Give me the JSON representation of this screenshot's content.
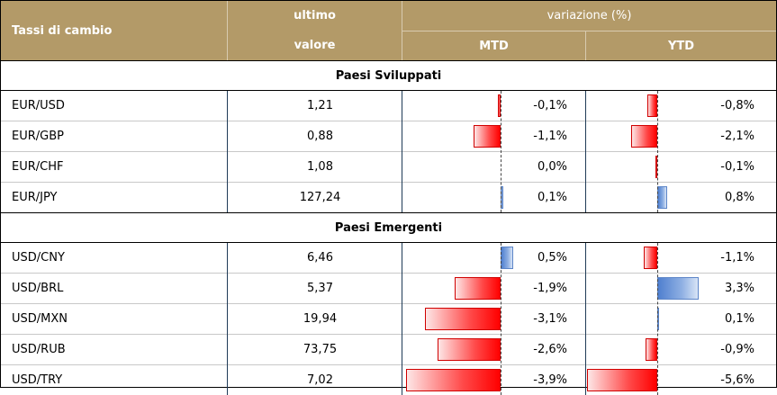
{
  "header": {
    "title": "Tassi di cambio",
    "ultimo_line1": "ultimo",
    "ultimo_line2": "valore",
    "variazione": "variazione (%)",
    "mtd": "MTD",
    "ytd": "YTD"
  },
  "sections": [
    {
      "title": "Paesi Sviluppati",
      "rows": [
        {
          "pair": "EUR/USD",
          "value": "1,21",
          "mtd": "-0,1%",
          "mtd_num": -0.1,
          "ytd": "-0,8%",
          "ytd_num": -0.8
        },
        {
          "pair": "EUR/GBP",
          "value": "0,88",
          "mtd": "-1,1%",
          "mtd_num": -1.1,
          "ytd": "-2,1%",
          "ytd_num": -2.1
        },
        {
          "pair": "EUR/CHF",
          "value": "1,08",
          "mtd": "0,0%",
          "mtd_num": 0.0,
          "ytd": "-0,1%",
          "ytd_num": -0.1
        },
        {
          "pair": "EUR/JPY",
          "value": "127,24",
          "mtd": "0,1%",
          "mtd_num": 0.1,
          "ytd": "0,8%",
          "ytd_num": 0.8
        }
      ]
    },
    {
      "title": "Paesi Emergenti",
      "rows": [
        {
          "pair": "USD/CNY",
          "value": "6,46",
          "mtd": "0,5%",
          "mtd_num": 0.5,
          "ytd": "-1,1%",
          "ytd_num": -1.1
        },
        {
          "pair": "USD/BRL",
          "value": "5,37",
          "mtd": "-1,9%",
          "mtd_num": -1.9,
          "ytd": "3,3%",
          "ytd_num": 3.3
        },
        {
          "pair": "USD/MXN",
          "value": "19,94",
          "mtd": "-3,1%",
          "mtd_num": -3.1,
          "ytd": "0,1%",
          "ytd_num": 0.1
        },
        {
          "pair": "USD/RUB",
          "value": "73,75",
          "mtd": "-2,6%",
          "mtd_num": -2.6,
          "ytd": "-0,9%",
          "ytd_num": -0.9
        },
        {
          "pair": "USD/TRY",
          "value": "7,02",
          "mtd": "-3,9%",
          "mtd_num": -3.9,
          "ytd": "-5,6%",
          "ytd_num": -5.6
        }
      ]
    }
  ],
  "colors": {
    "header_bg": "#b39a68",
    "negative_bar": "#ff0000",
    "positive_bar": "#5c85c8"
  }
}
